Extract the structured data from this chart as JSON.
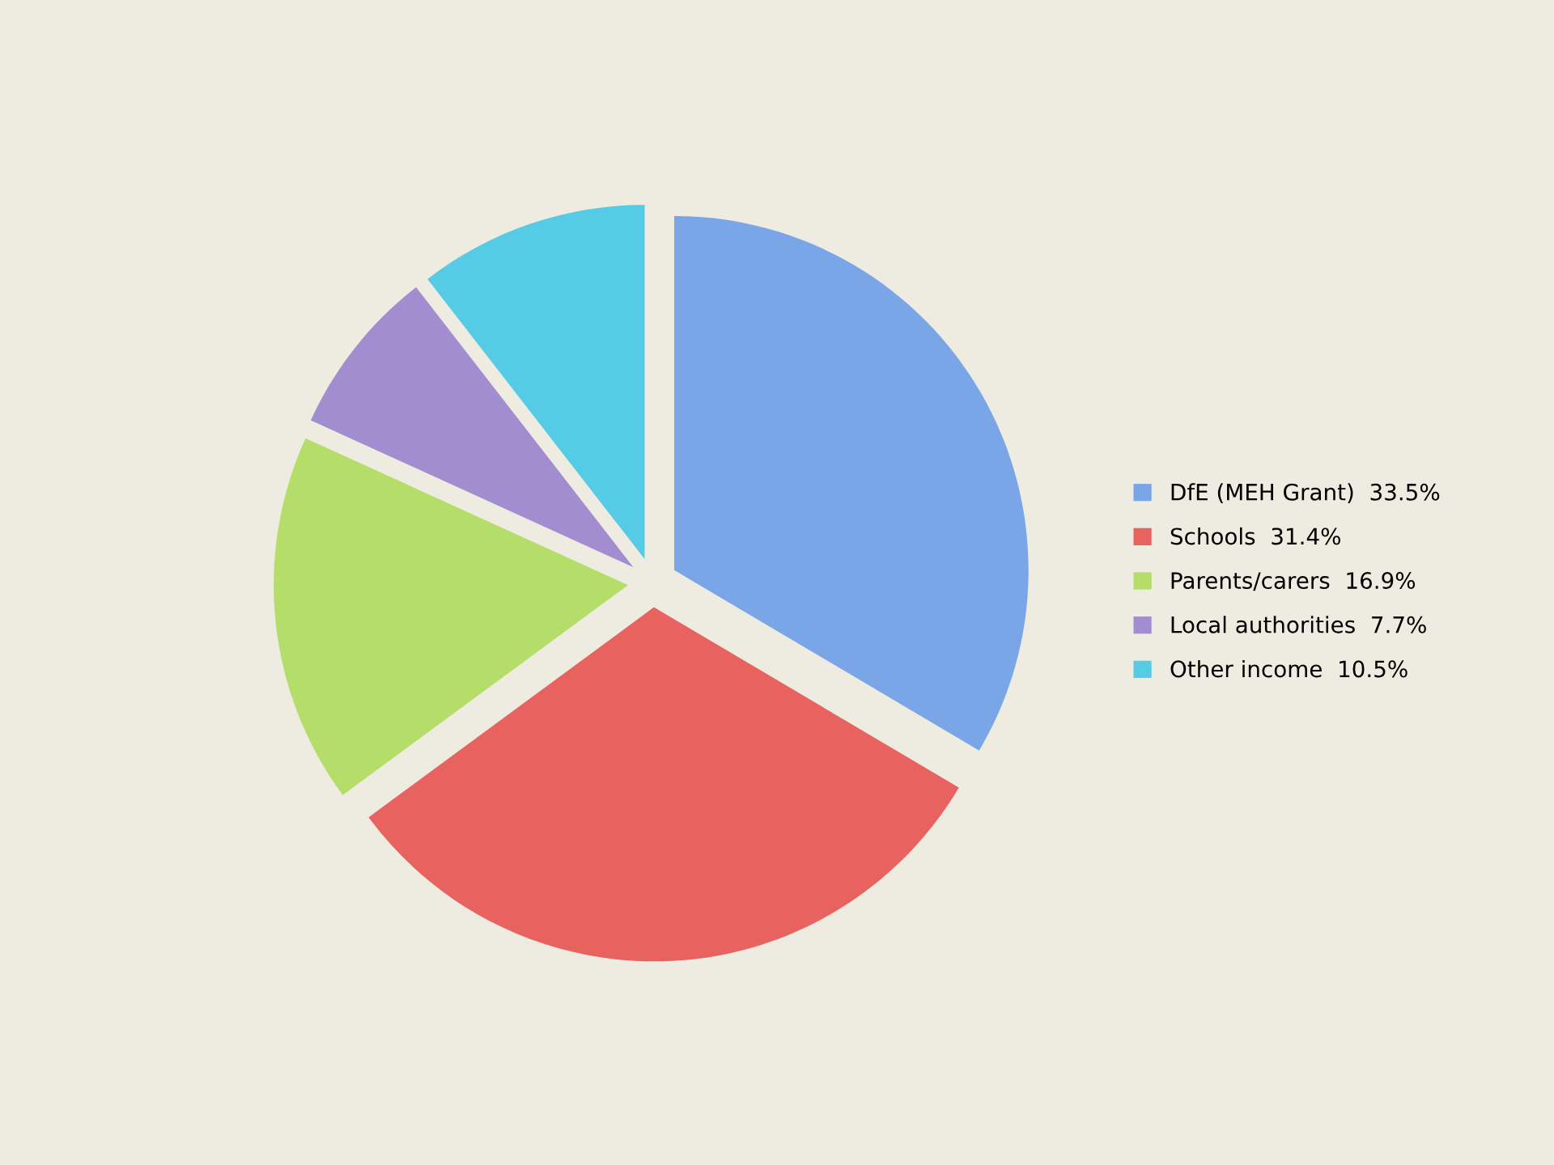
{
  "chart_data": {
    "type": "pie",
    "categories": [
      "DfE (MEH Grant)",
      "Schools",
      "Parents/carers",
      "Local authorities",
      "Other income"
    ],
    "values": [
      33.5,
      31.4,
      16.9,
      7.7,
      10.5
    ],
    "value_labels": [
      "33.5%",
      "31.4%",
      "16.9%",
      "7.7%",
      "10.5%"
    ],
    "colors": [
      "#7aa6e8",
      "#e8635f",
      "#b5dd6a",
      "#a28dd0",
      "#55cbe6"
    ],
    "legend": "right"
  }
}
